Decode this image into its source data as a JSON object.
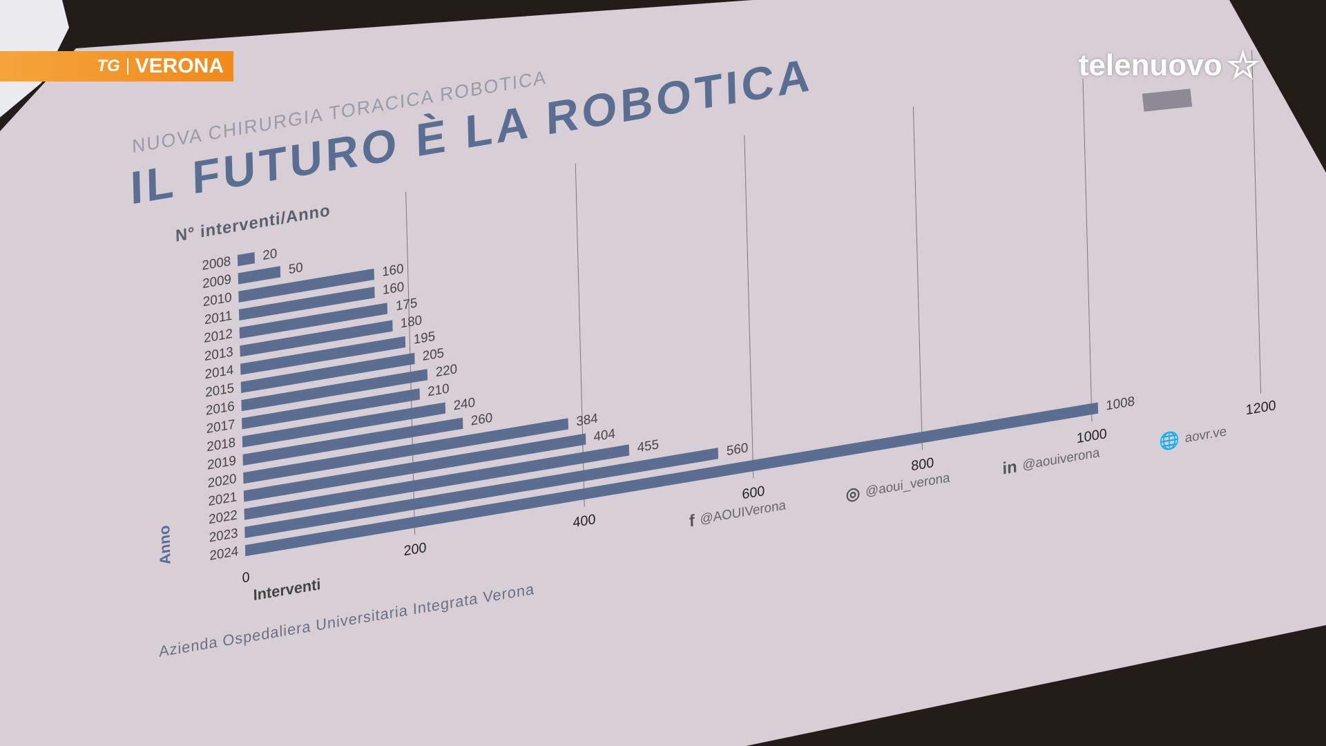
{
  "overlay": {
    "tg_logo": "TG",
    "tg_city": "VERONA",
    "channel_logo": "telenuovo"
  },
  "slide": {
    "subtitle": "NUOVA CHIRURGIA TORACICA ROBOTICA",
    "title": "IL FUTURO È LA ROBOTICA",
    "footer": "Azienda Ospedaliera Universitaria Integrata Verona",
    "social": [
      {
        "icon": "facebook-icon",
        "glyph": "f",
        "handle": "@AOUIVerona"
      },
      {
        "icon": "instagram-icon",
        "glyph": "◎",
        "handle": "@aoui_verona"
      },
      {
        "icon": "linkedin-icon",
        "glyph": "in",
        "handle": "@aouiverona"
      },
      {
        "icon": "globe-icon",
        "glyph": "🌐",
        "handle": "aovr.ve"
      }
    ]
  },
  "chart_data": {
    "type": "bar",
    "orientation": "horizontal",
    "title": "N° interventi/Anno",
    "xlabel": "Interventi",
    "ylabel": "Anno",
    "categories": [
      "2008",
      "2009",
      "2010",
      "2011",
      "2012",
      "2013",
      "2014",
      "2015",
      "2016",
      "2017",
      "2018",
      "2019",
      "2020",
      "2021",
      "2022",
      "2023",
      "2024"
    ],
    "values": [
      20,
      50,
      160,
      160,
      175,
      180,
      195,
      205,
      220,
      210,
      240,
      260,
      384,
      404,
      455,
      560,
      1008
    ],
    "xlim": [
      0,
      1200
    ],
    "xticks": [
      "0",
      "200",
      "400",
      "600",
      "800",
      "1000",
      "1200"
    ],
    "grid": true,
    "color": "#5b6d90"
  }
}
